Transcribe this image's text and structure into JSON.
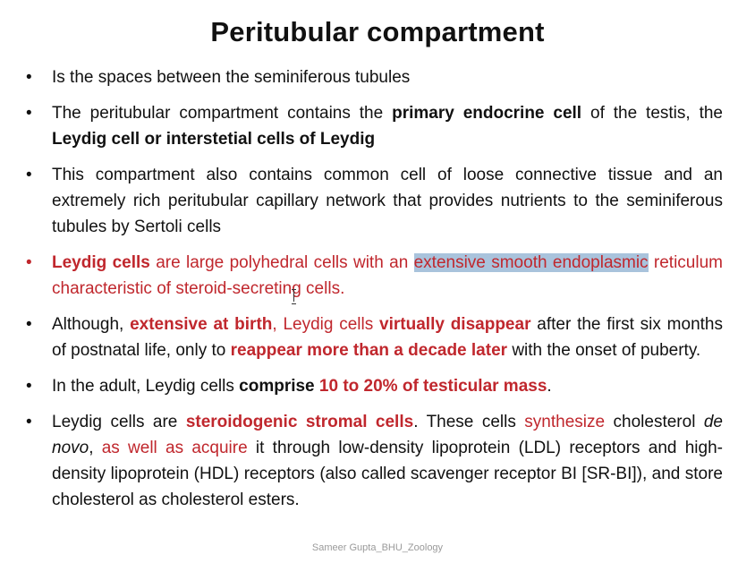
{
  "slide": {
    "title": "Peritubular compartment",
    "bullet_glyph": "•",
    "footer": "Sameer Gupta_BHU_Zoology"
  },
  "bullets": [
    {
      "t": [
        "Is the spaces between the seminiferous tubules"
      ]
    },
    {
      "t": [
        "The peritubular compartment contains the ",
        "primary endocrine cell",
        " of the testis, the ",
        "Leydig cell or interstetial cells of Leydig"
      ]
    },
    {
      "t": [
        "This compartment also contains common cell of loose connective tissue and an extremely rich peritubular capillary network that provides nutrients to the seminiferous tubules by Sertoli cells"
      ]
    },
    {
      "t": [
        "Leydig cells",
        " are large polyhedral cells with an ",
        "extensive smooth endoplasmic",
        " reticulum characteristic of steroid-secreting cells."
      ]
    },
    {
      "t": [
        "Although, ",
        "extensive at birth",
        ", Leydig cells ",
        "virtually disappear",
        " after the first six months of postnatal life, only to ",
        "reappear more than a decade later",
        " with the onset of puberty."
      ]
    },
    {
      "t": [
        "In the adult, Leydig cells ",
        "comprise",
        " ",
        "10 to 20% of testicular mass",
        "."
      ]
    },
    {
      "t": [
        "Leydig cells are ",
        "steroidogenic stromal cells",
        ". These cells ",
        "synthesize",
        " cholesterol ",
        "de novo",
        ", ",
        "as well as acquire",
        " it through low-density lipoprotein (LDL) receptors and high-density lipoprotein (HDL) receptors (also called scavenger receptor BI [SR-BI]), and store cholesterol as cholesterol esters."
      ]
    }
  ],
  "colors": {
    "text": "#111111",
    "accent_red": "#c0272d",
    "highlight": "#a9c3dc",
    "footer": "#9a9a9a"
  }
}
